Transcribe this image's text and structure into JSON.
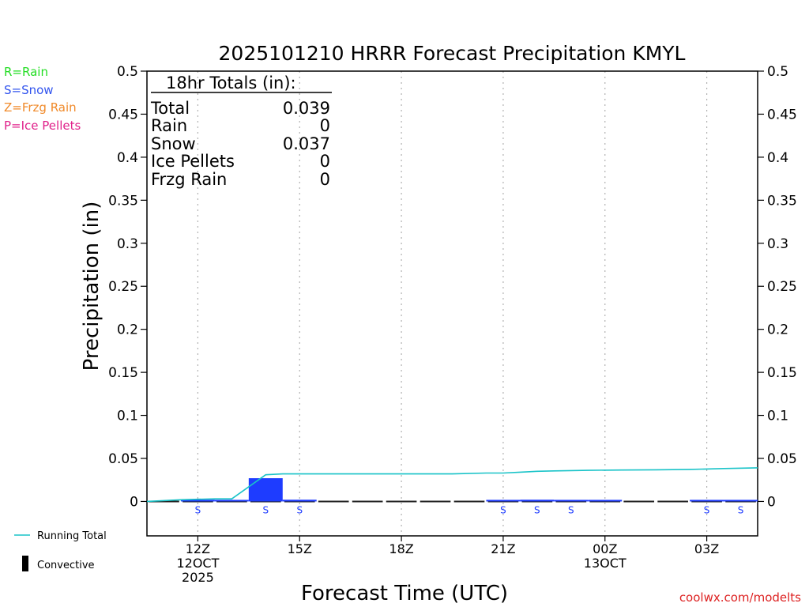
{
  "chart_data": {
    "type": "bar",
    "title": "2025101210 HRRR Forecast Precipitation KMYL",
    "xlabel": "Forecast Time (UTC)",
    "ylabel": "Precipitation (in)",
    "ylim": [
      -0.04,
      0.5
    ],
    "yticks": [
      "0",
      "0.05",
      "0.1",
      "0.15",
      "0.2",
      "0.25",
      "0.3",
      "0.35",
      "0.4",
      "0.45",
      "0.5"
    ],
    "ytick_values": [
      0,
      0.05,
      0.1,
      0.15,
      0.2,
      0.25,
      0.3,
      0.35,
      0.4,
      0.45,
      0.5
    ],
    "xlim_hours": [
      10.5,
      28.5
    ],
    "xticks": [
      {
        "hour": 12,
        "lines": [
          "12Z",
          "12OCT",
          "2025"
        ]
      },
      {
        "hour": 15,
        "lines": [
          "15Z"
        ]
      },
      {
        "hour": 18,
        "lines": [
          "18Z"
        ]
      },
      {
        "hour": 21,
        "lines": [
          "21Z"
        ]
      },
      {
        "hour": 24,
        "lines": [
          "00Z",
          "13OCT"
        ]
      },
      {
        "hour": 27,
        "lines": [
          "03Z"
        ]
      }
    ],
    "hourly": {
      "hours": [
        11,
        12,
        13,
        14,
        15,
        16,
        17,
        18,
        19,
        20,
        21,
        22,
        23,
        24,
        25,
        26,
        27,
        28
      ],
      "values": [
        0.0,
        0.002,
        0.001,
        0.027,
        0.002,
        0.0,
        0.0,
        0.0,
        0.0,
        0.0,
        0.0005,
        0.002,
        0.001,
        0.0005,
        0.0,
        0.0,
        0.001,
        0.001
      ],
      "color": "#1e3cff"
    },
    "running_total": {
      "name": "Running Total",
      "color": "#19c3c8",
      "x": [
        10.5,
        11.5,
        12.5,
        13.0,
        13.5,
        14.0,
        14.5,
        15.5,
        16.5,
        17.5,
        18.5,
        19.5,
        20.5,
        21.0,
        21.5,
        22.0,
        22.5,
        23.5,
        24.5,
        25.5,
        26.5,
        27.5,
        28.5
      ],
      "y": [
        0.0,
        0.002,
        0.003,
        0.003,
        0.017,
        0.031,
        0.032,
        0.032,
        0.032,
        0.032,
        0.032,
        0.032,
        0.033,
        0.033,
        0.034,
        0.035,
        0.0355,
        0.0362,
        0.0365,
        0.0367,
        0.0372,
        0.0382,
        0.039
      ]
    },
    "ptype_labels": {
      "hours": [
        12,
        14,
        15,
        21,
        22,
        23,
        27,
        28
      ],
      "labels": [
        "S",
        "S",
        "S",
        "S",
        "S",
        "S",
        "S",
        "S"
      ],
      "color": "#1e3cff"
    },
    "totals_box": {
      "header": "18hr Totals (in):",
      "rows": [
        {
          "label": "Total",
          "value": "0.039"
        },
        {
          "label": "Rain",
          "value": "0"
        },
        {
          "label": "Snow",
          "value": "0.037"
        },
        {
          "label": "Ice Pellets",
          "value": "0"
        },
        {
          "label": "Frzg Rain",
          "value": "0"
        }
      ]
    },
    "ptype_legend": [
      {
        "text": "R=Rain",
        "color": "#22dd22"
      },
      {
        "text": "S=Snow",
        "color": "#3355ee"
      },
      {
        "text": "Z=Frzg Rain",
        "color": "#f08a2a"
      },
      {
        "text": "P=Ice Pellets",
        "color": "#e0208a"
      }
    ],
    "legend": {
      "running_total_label": "Running Total",
      "convective_label": "Convective"
    },
    "credit": "coolwx.com/modelts",
    "credit_color": "#dd2222"
  }
}
